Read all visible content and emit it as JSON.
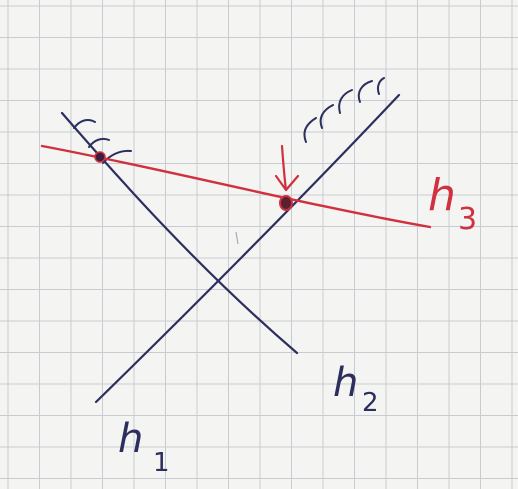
{
  "colors": {
    "paper": "#f4f4f2",
    "grid": "#c9cbd2",
    "ink_blue": "#2c2f5e",
    "ink_red": "#d0313f"
  },
  "labels": {
    "h1": {
      "base": "h",
      "sub": "1"
    },
    "h2": {
      "base": "h",
      "sub": "2"
    },
    "h3": {
      "base": "h",
      "sub": "3"
    }
  }
}
